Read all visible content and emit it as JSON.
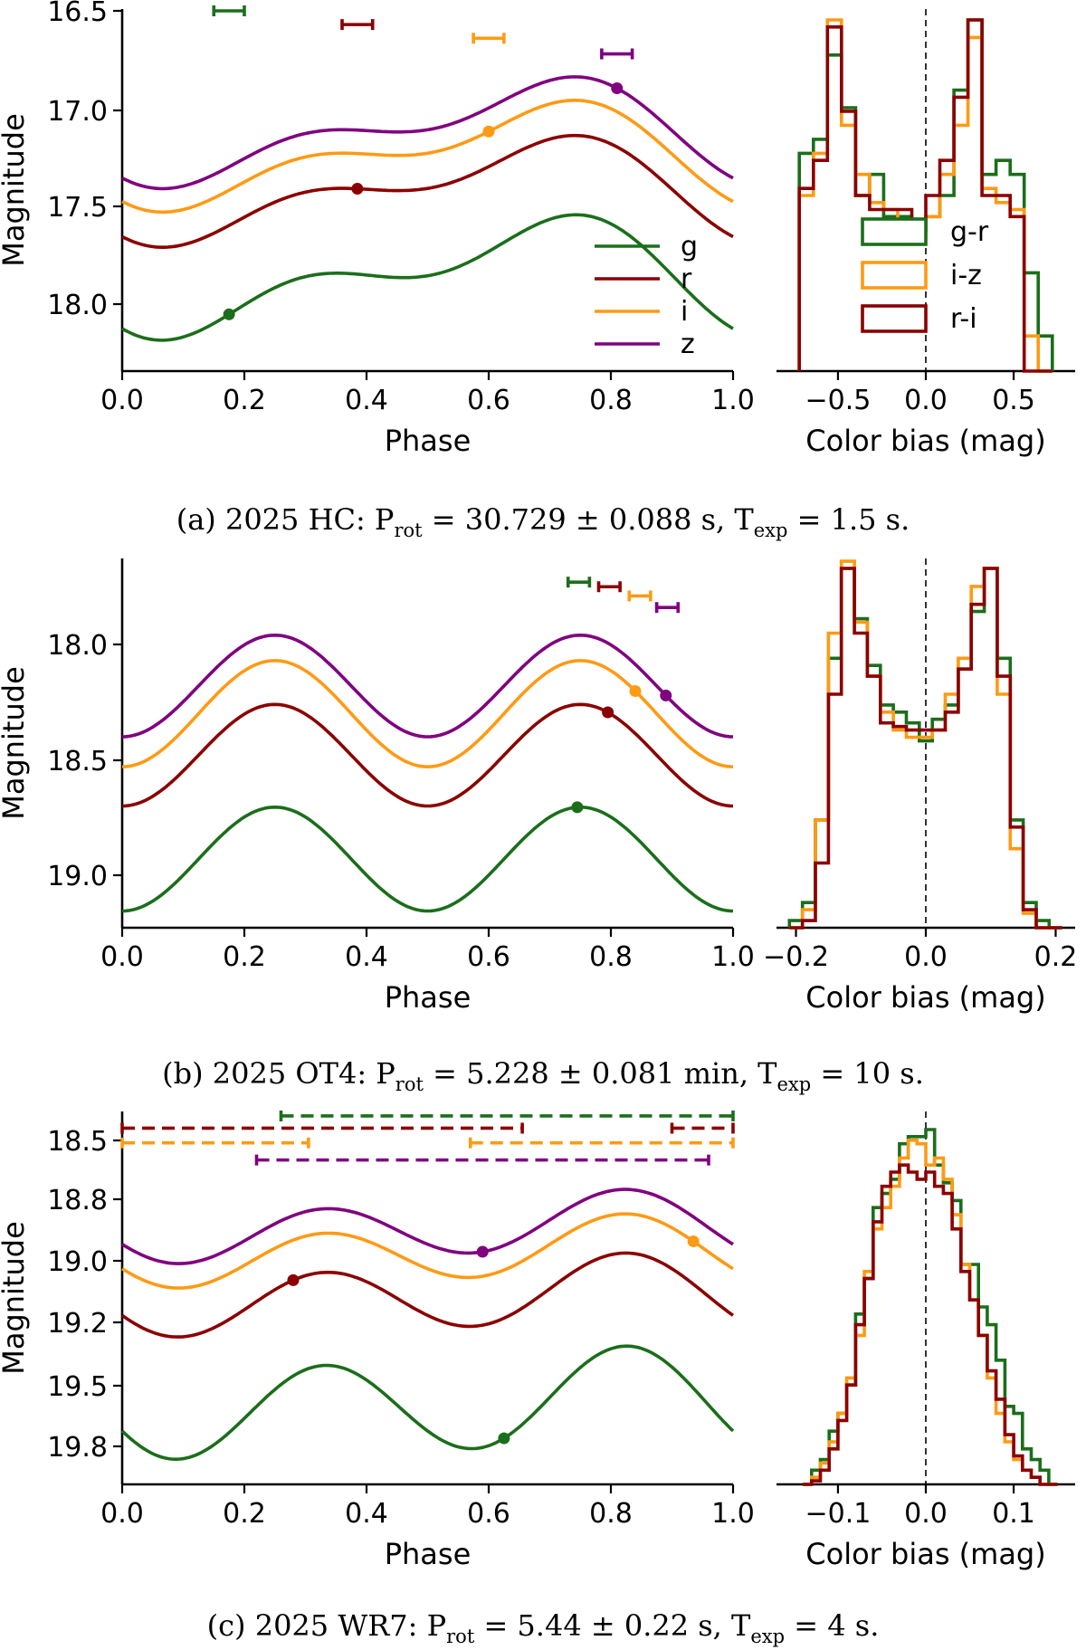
{
  "colors": {
    "g": "#1b6e1b",
    "r": "#8b0000",
    "i": "#ff9a14",
    "z": "#800080",
    "g-r": "#1b6e1b",
    "i-z": "#ff9a14",
    "r-i": "#8b0000"
  },
  "chart_data": [
    {
      "type": "line",
      "panel": "a-lightcurve",
      "xlabel": "Phase",
      "ylabel": "Magnitude",
      "xlim": [
        0,
        1
      ],
      "ylim": [
        18.35,
        16.5
      ],
      "inverted_y": true,
      "xticks": [
        "0.0",
        "0.2",
        "0.4",
        "0.6",
        "0.8",
        "1.0"
      ],
      "yticks": [
        "16.5",
        "17.0",
        "17.5",
        "18.0"
      ],
      "ytick_values": [
        16.5,
        17.0,
        17.5,
        18.0
      ],
      "legend": [
        "g",
        "r",
        "i",
        "z"
      ],
      "series": [
        {
          "name": "g",
          "mean": 17.86,
          "amp1": 0.23,
          "phi1": 0.15,
          "amp2": 0.14,
          "phi2": 0.03,
          "dot": 0.175
        },
        {
          "name": "r",
          "mean": 17.42,
          "amp1": 0.21,
          "phi1": 0.15,
          "amp2": 0.12,
          "phi2": 0.03,
          "dot": 0.385
        },
        {
          "name": "i",
          "mean": 17.24,
          "amp1": 0.21,
          "phi1": 0.15,
          "amp2": 0.12,
          "phi2": 0.03,
          "dot": 0.6
        },
        {
          "name": "z",
          "mean": 17.12,
          "amp1": 0.21,
          "phi1": 0.15,
          "amp2": 0.12,
          "phi2": 0.03,
          "dot": 0.81
        }
      ],
      "exposure_bars": [
        {
          "band": "g",
          "x0": 0.15,
          "x1": 0.2,
          "y": 16.5
        },
        {
          "band": "r",
          "x0": 0.36,
          "x1": 0.41,
          "y": 16.57
        },
        {
          "band": "i",
          "x0": 0.575,
          "x1": 0.625,
          "y": 16.64
        },
        {
          "band": "z",
          "x0": 0.785,
          "x1": 0.835,
          "y": 16.72
        }
      ]
    },
    {
      "type": "histogram",
      "panel": "a-colorbias",
      "xlabel": "Color bias (mag)",
      "xlim": [
        -0.85,
        0.85
      ],
      "xticks": [
        "−0.5",
        "0.0",
        "0.5"
      ],
      "xtick_values": [
        -0.5,
        0.0,
        0.5
      ],
      "legend": [
        "g-r",
        "i-z",
        "r-i"
      ],
      "bin_edges": [
        -0.72,
        -0.64,
        -0.56,
        -0.48,
        -0.4,
        -0.32,
        -0.24,
        -0.16,
        -0.08,
        0.0,
        0.08,
        0.16,
        0.24,
        0.32,
        0.4,
        0.48,
        0.56,
        0.64,
        0.72
      ],
      "series": [
        {
          "name": "g-r",
          "counts": [
            0.62,
            0.66,
            0.9,
            0.75,
            0.5,
            0.56,
            0.44,
            0.44,
            0.42,
            0.44,
            0.5,
            0.8,
            1.0,
            0.56,
            0.6,
            0.56,
            0.28,
            0.1
          ]
        },
        {
          "name": "i-z",
          "counts": [
            0.5,
            0.62,
            1.0,
            0.7,
            0.56,
            0.48,
            0.46,
            0.42,
            0.38,
            0.44,
            0.56,
            0.7,
            0.95,
            0.52,
            0.48,
            0.46,
            0.1,
            0.0
          ]
        },
        {
          "name": "r-i",
          "counts": [
            0.52,
            0.6,
            0.98,
            0.74,
            0.5,
            0.46,
            0.46,
            0.46,
            0.4,
            0.5,
            0.6,
            0.78,
            1.0,
            0.5,
            0.5,
            0.44,
            0.0,
            0.0
          ]
        }
      ]
    },
    {
      "type": "line",
      "panel": "b-lightcurve",
      "xlabel": "Phase",
      "ylabel": "Magnitude",
      "xlim": [
        0,
        1
      ],
      "ylim": [
        19.25,
        17.63
      ],
      "inverted_y": true,
      "xticks": [
        "0.0",
        "0.2",
        "0.4",
        "0.6",
        "0.8",
        "1.0"
      ],
      "yticks": [
        "18.0",
        "18.5",
        "19.0"
      ],
      "ytick_values": [
        18.0,
        18.5,
        19.0
      ],
      "series": [
        {
          "name": "g",
          "mean": 18.93,
          "amp1": 0.0,
          "phi1": 0.0,
          "amp2": 0.225,
          "phi2": 0.0,
          "dot": 0.745
        },
        {
          "name": "r",
          "mean": 18.48,
          "amp1": 0.0,
          "phi1": 0.0,
          "amp2": 0.22,
          "phi2": 0.0,
          "dot": 0.795
        },
        {
          "name": "i",
          "mean": 18.3,
          "amp1": 0.0,
          "phi1": 0.0,
          "amp2": 0.23,
          "phi2": 0.0,
          "dot": 0.84
        },
        {
          "name": "z",
          "mean": 18.18,
          "amp1": 0.0,
          "phi1": 0.0,
          "amp2": 0.22,
          "phi2": 0.0,
          "dot": 0.89
        }
      ],
      "exposure_bars": [
        {
          "band": "g",
          "x0": 0.73,
          "x1": 0.765,
          "y": 17.73
        },
        {
          "band": "r",
          "x0": 0.78,
          "x1": 0.815,
          "y": 17.75
        },
        {
          "band": "i",
          "x0": 0.83,
          "x1": 0.865,
          "y": 17.79
        },
        {
          "band": "z",
          "x0": 0.875,
          "x1": 0.91,
          "y": 17.84
        }
      ]
    },
    {
      "type": "histogram",
      "panel": "b-colorbias",
      "xlabel": "Color bias (mag)",
      "xlim": [
        -0.23,
        0.23
      ],
      "xticks": [
        "−0.2",
        "0.0",
        "0.2"
      ],
      "xtick_values": [
        -0.2,
        0.0,
        0.2
      ],
      "bin_edges": [
        -0.21,
        -0.19,
        -0.17,
        -0.15,
        -0.13,
        -0.11,
        -0.09,
        -0.07,
        -0.05,
        -0.03,
        -0.01,
        0.01,
        0.03,
        0.05,
        0.07,
        0.09,
        0.11,
        0.13,
        0.15,
        0.17,
        0.19,
        0.21
      ],
      "series": [
        {
          "name": "g-r",
          "counts": [
            0.02,
            0.07,
            0.3,
            0.75,
            1.0,
            0.86,
            0.73,
            0.62,
            0.6,
            0.57,
            0.52,
            0.58,
            0.62,
            0.72,
            0.88,
            1.0,
            0.75,
            0.3,
            0.07,
            0.02,
            0.0
          ]
        },
        {
          "name": "i-z",
          "counts": [
            0.0,
            0.05,
            0.3,
            0.82,
            1.02,
            0.85,
            0.7,
            0.6,
            0.55,
            0.53,
            0.53,
            0.55,
            0.65,
            0.75,
            0.95,
            1.0,
            0.65,
            0.22,
            0.04,
            0.0,
            0.0
          ]
        },
        {
          "name": "r-i",
          "counts": [
            0.0,
            0.02,
            0.18,
            0.65,
            1.0,
            0.82,
            0.7,
            0.57,
            0.56,
            0.55,
            0.55,
            0.55,
            0.6,
            0.72,
            0.9,
            1.0,
            0.7,
            0.28,
            0.05,
            0.0,
            0.0
          ]
        }
      ]
    },
    {
      "type": "line",
      "panel": "c-lightcurve",
      "xlabel": "Phase",
      "ylabel": "Magnitude",
      "xlim": [
        0,
        1
      ],
      "ylim": [
        19.85,
        18.35
      ],
      "inverted_y": true,
      "xticks": [
        "0.0",
        "0.2",
        "0.4",
        "0.6",
        "0.8",
        "1.0"
      ],
      "yticks": [
        "18.5",
        "18.8",
        "19.0",
        "19.2",
        "19.5",
        "19.8"
      ],
      "ytick_values": [
        18.5,
        18.75,
        19.0,
        19.25,
        19.5,
        19.75
      ],
      "series": [
        {
          "name": "g",
          "mean": 19.58,
          "amp1": 0.045,
          "phi1": 0.25,
          "amp2": 0.2,
          "phi2": 0.08,
          "dot": 0.625
        },
        {
          "name": "r",
          "mean": 19.14,
          "amp1": 0.045,
          "phi1": 0.25,
          "amp2": 0.14,
          "phi2": 0.08,
          "dot": 0.28
        },
        {
          "name": "i",
          "mean": 18.96,
          "amp1": 0.045,
          "phi1": 0.25,
          "amp2": 0.12,
          "phi2": 0.08,
          "dot": 0.935
        },
        {
          "name": "z",
          "mean": 18.86,
          "amp1": 0.045,
          "phi1": 0.25,
          "amp2": 0.12,
          "phi2": 0.08,
          "dot": 0.59
        }
      ],
      "exposure_bars": [
        {
          "band": "g",
          "x0": 0.26,
          "x1": 1.0,
          "y": 18.4
        },
        {
          "band": "r",
          "x0": 0.0,
          "x1": 0.655,
          "y": 18.45
        },
        {
          "band": "r",
          "x0": 0.9,
          "x1": 1.0,
          "y": 18.45
        },
        {
          "band": "i",
          "x0": 0.0,
          "x1": 0.305,
          "y": 18.51
        },
        {
          "band": "i",
          "x0": 0.57,
          "x1": 1.0,
          "y": 18.51
        },
        {
          "band": "z",
          "x0": 0.22,
          "x1": 0.96,
          "y": 18.58
        }
      ]
    },
    {
      "type": "histogram",
      "panel": "c-colorbias",
      "xlabel": "Color bias (mag)",
      "xlim": [
        -0.17,
        0.17
      ],
      "xticks": [
        "−0.1",
        "0.0",
        "0.1"
      ],
      "xtick_values": [
        -0.1,
        0.0,
        0.1
      ],
      "bin_edges": [
        -0.14,
        -0.13,
        -0.12,
        -0.11,
        -0.1,
        -0.09,
        -0.08,
        -0.07,
        -0.06,
        -0.05,
        -0.04,
        -0.03,
        -0.02,
        -0.01,
        0.0,
        0.01,
        0.02,
        0.03,
        0.04,
        0.05,
        0.06,
        0.07,
        0.08,
        0.09,
        0.1,
        0.11,
        0.12,
        0.13,
        0.14,
        0.15
      ],
      "series": [
        {
          "name": "g-r",
          "counts": [
            0.0,
            0.04,
            0.07,
            0.15,
            0.2,
            0.28,
            0.48,
            0.58,
            0.78,
            0.82,
            0.86,
            0.96,
            0.98,
            0.98,
            1.0,
            0.9,
            0.85,
            0.8,
            0.62,
            0.62,
            0.5,
            0.45,
            0.35,
            0.22,
            0.2,
            0.1,
            0.07,
            0.04,
            0.0
          ]
        },
        {
          "name": "i-z",
          "counts": [
            0.0,
            0.02,
            0.06,
            0.12,
            0.2,
            0.3,
            0.42,
            0.6,
            0.72,
            0.78,
            0.84,
            0.92,
            0.97,
            0.96,
            0.9,
            0.92,
            0.86,
            0.76,
            0.62,
            0.52,
            0.42,
            0.3,
            0.2,
            0.12,
            0.07,
            0.04,
            0.02,
            0.0,
            0.0
          ]
        },
        {
          "name": "r-i",
          "counts": [
            0.0,
            0.01,
            0.04,
            0.1,
            0.18,
            0.28,
            0.45,
            0.58,
            0.74,
            0.84,
            0.88,
            0.9,
            0.88,
            0.86,
            0.88,
            0.84,
            0.82,
            0.72,
            0.6,
            0.52,
            0.42,
            0.32,
            0.24,
            0.14,
            0.08,
            0.04,
            0.02,
            0.0,
            0.0
          ]
        }
      ]
    }
  ],
  "captions": [
    {
      "pre": "(a) 2025 HC: P",
      "sub1": "rot",
      "mid": " = 30.729 ± 0.088 s, T",
      "sub2": "exp",
      "post": " = 1.5 s."
    },
    {
      "pre": "(b) 2025 OT4: P",
      "sub1": "rot",
      "mid": " = 5.228 ± 0.081 min, T",
      "sub2": "exp",
      "post": " = 10 s."
    },
    {
      "pre": "(c) 2025 WR7: P",
      "sub1": "rot",
      "mid": " = 5.44 ± 0.22 s, T",
      "sub2": "exp",
      "post": " = 4 s."
    }
  ]
}
